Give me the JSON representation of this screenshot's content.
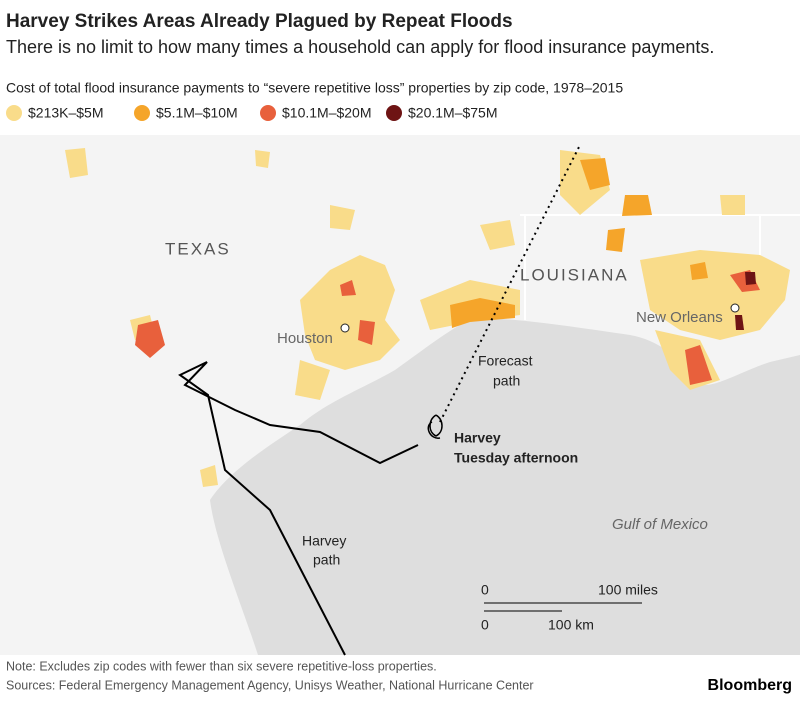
{
  "header": {
    "title": "Harvey Strikes Areas Already Plagued by Repeat Floods",
    "subtitle": "There is no limit to how many times a household can apply for flood insurance payments."
  },
  "legend": {
    "title": "Cost of total flood insurance payments to “severe repetitive loss” properties by zip code, 1978–2015",
    "items": [
      {
        "label": "$213K–$5M",
        "color": "#f9dc8a"
      },
      {
        "label": "$5.1M–$10M",
        "color": "#f5a52a"
      },
      {
        "label": "$10.1M–$20M",
        "color": "#e8603c"
      },
      {
        "label": "$20.1M–$75M",
        "color": "#6e1414"
      }
    ]
  },
  "map": {
    "labels": {
      "texas": "TEXAS",
      "louisiana": "LOUISIANA",
      "houston": "Houston",
      "new_orleans": "New Orleans",
      "gulf": "Gulf of Mexico",
      "forecast": [
        "Forecast",
        "path"
      ],
      "harvey_now": [
        "Harvey",
        "Tuesday afternoon"
      ],
      "harvey_path": [
        "Harvey",
        "path"
      ]
    },
    "scale": {
      "miles_zero": "0",
      "miles": "100 miles",
      "km_zero": "0",
      "km": "100 km"
    }
  },
  "footer": {
    "note": "Note: Excludes zip codes with fewer than six severe repetitive-loss properties.",
    "sources": "Sources: Federal Emergency Management Agency, Unisys Weather, National Hurricane Center",
    "brand": "Bloomberg"
  }
}
